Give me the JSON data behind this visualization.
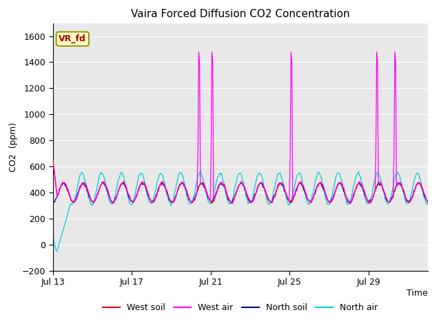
{
  "title": "Vaira Forced Diffusion CO2 Concentration",
  "xlabel": "Time",
  "ylabel": "CO2  (ppm)",
  "ylim": [
    -200,
    1700
  ],
  "yticks": [
    -200,
    0,
    200,
    400,
    600,
    800,
    1000,
    1200,
    1400,
    1600
  ],
  "bg_color": "#e8e8e8",
  "fig_color": "#ffffff",
  "legend_entries": [
    "West soil",
    "West air",
    "North soil",
    "North air"
  ],
  "legend_colors": [
    "#ff0000",
    "#ff00ff",
    "#00008b",
    "#00cccc"
  ],
  "label_box_text": "VR_fd",
  "label_box_facecolor": "#ffffcc",
  "label_box_edgecolor": "#999900",
  "label_box_textcolor": "#aa0000",
  "xtick_labels": [
    "Jul 13",
    "Jul 17",
    "Jul 21",
    "Jul 25",
    "Jul 29"
  ],
  "xtick_positions": [
    0,
    4,
    8,
    12,
    16
  ],
  "xlim": [
    0,
    19
  ],
  "west_soil_color": "#ff0000",
  "west_air_color": "#ff00ff",
  "north_soil_color": "#00008b",
  "north_air_color": "#00cccc",
  "spike_days": [
    7.4,
    8.05,
    12.05,
    16.4,
    17.3
  ],
  "spike_height": 1480,
  "diurnal_period_hours": 24
}
